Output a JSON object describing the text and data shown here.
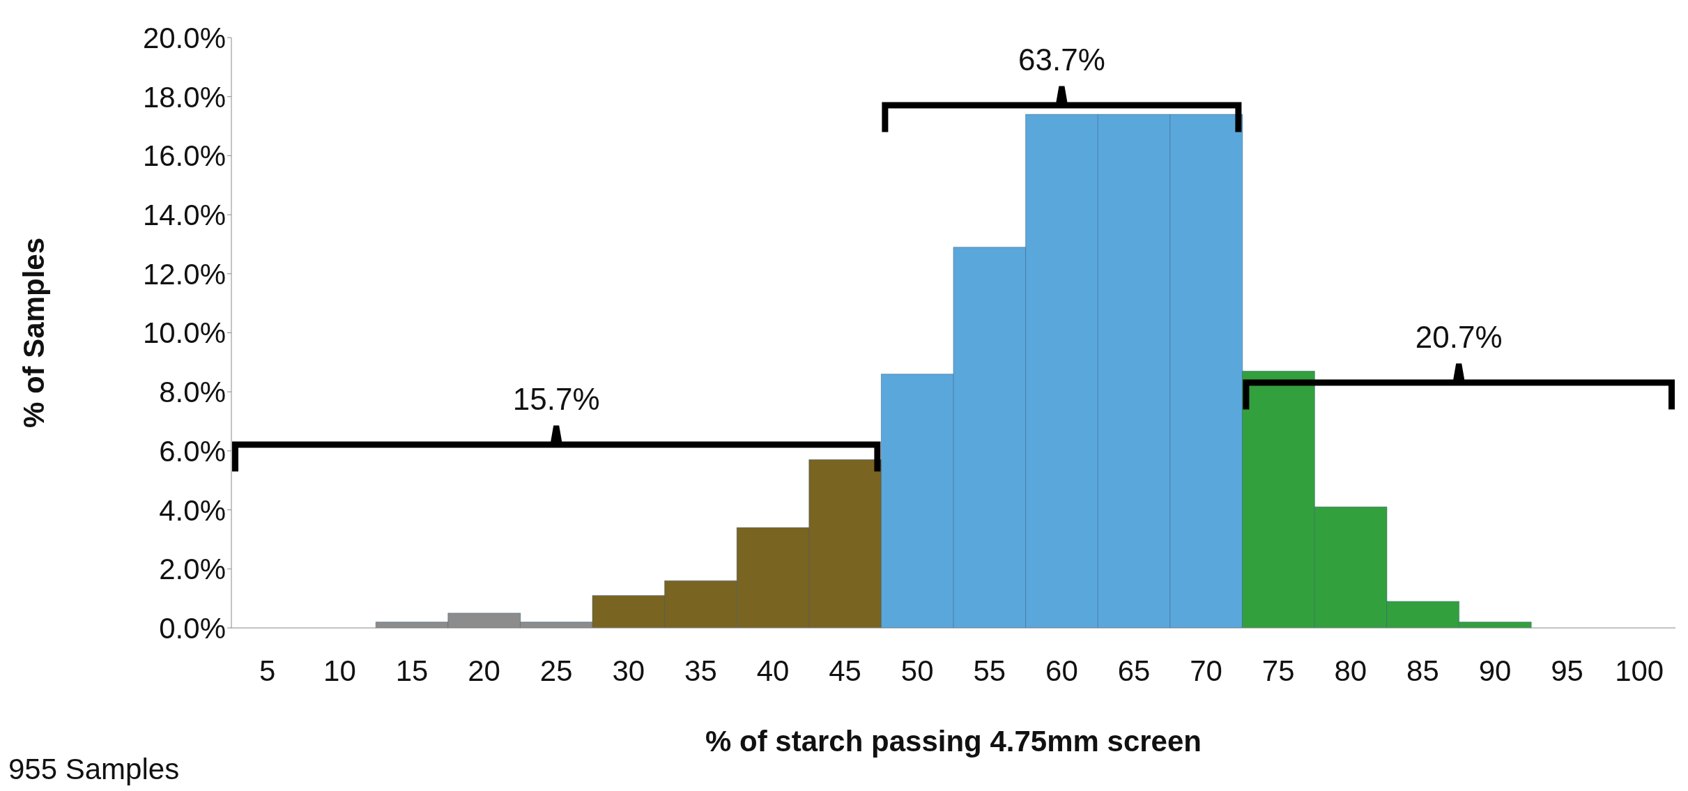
{
  "chart_data": {
    "type": "bar",
    "xlabel": "% of starch passing 4.75mm screen",
    "ylabel": "% of Samples",
    "categories": [
      "5",
      "10",
      "15",
      "20",
      "25",
      "30",
      "35",
      "40",
      "45",
      "50",
      "55",
      "60",
      "65",
      "70",
      "75",
      "80",
      "85",
      "90",
      "95",
      "100"
    ],
    "values": [
      0,
      0,
      0.2,
      0.5,
      0.2,
      1.1,
      1.6,
      3.4,
      5.7,
      8.6,
      12.9,
      17.4,
      17.4,
      17.4,
      8.7,
      4.1,
      0.9,
      0.2,
      0,
      0
    ],
    "colors": [
      "#8c8c8c",
      "#8c8c8c",
      "#8c8c8c",
      "#8c8c8c",
      "#8c8c8c",
      "#7a6422",
      "#7a6422",
      "#7a6422",
      "#7a6422",
      "#5aa7dc",
      "#5aa7dc",
      "#5aa7dc",
      "#5aa7dc",
      "#5aa7dc",
      "#33a03e",
      "#33a03e",
      "#33a03e",
      "#33a03e",
      "#33a03e",
      "#33a03e"
    ],
    "ylim": [
      0,
      20
    ],
    "yticks": [
      {
        "value": 0,
        "label": "0.0%"
      },
      {
        "value": 2,
        "label": "2.0%"
      },
      {
        "value": 4,
        "label": "4.0%"
      },
      {
        "value": 6,
        "label": "6.0%"
      },
      {
        "value": 8,
        "label": "8.0%"
      },
      {
        "value": 10,
        "label": "10.0%"
      },
      {
        "value": 12,
        "label": "12.0%"
      },
      {
        "value": 14,
        "label": "14.0%"
      },
      {
        "value": 16,
        "label": "16.0%"
      },
      {
        "value": 18,
        "label": "18.0%"
      },
      {
        "value": 20,
        "label": "20.0%"
      }
    ],
    "annotations": [
      "15.7%",
      "63.7%",
      "20.7%",
      "955 Samples"
    ],
    "grid": false,
    "legend": false
  }
}
